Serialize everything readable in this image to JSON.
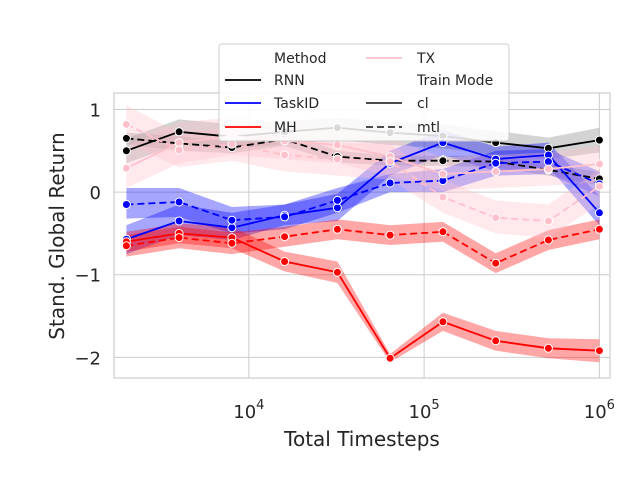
{
  "chart_data": {
    "type": "line",
    "title": "",
    "xlabel": "Total Timesteps",
    "ylabel": "Stand. Global Return",
    "xscale": "log",
    "xlim": [
      1700,
      1150000
    ],
    "ylim": [
      -2.25,
      1.2
    ],
    "xticks": [
      {
        "value": 10000,
        "base": "10",
        "exp": "4"
      },
      {
        "value": 100000,
        "base": "10",
        "exp": "5"
      },
      {
        "value": 1000000,
        "base": "10",
        "exp": "6"
      }
    ],
    "yticks": [
      1,
      0,
      -1,
      -2
    ],
    "ytick_labels": [
      "1",
      "0",
      "−1",
      "−2"
    ],
    "grid": true,
    "legend": {
      "placement": "top-center",
      "method_title": "Method",
      "mode_title": "Train Mode",
      "entries": [
        {
          "label": "RNN",
          "color": "#000000",
          "dash": "solid"
        },
        {
          "label": "TaskID",
          "color": "#0000ff",
          "dash": "solid"
        },
        {
          "label": "MH",
          "color": "#ff0000",
          "dash": "solid"
        },
        {
          "label": "TX",
          "color": "#ffc0cb",
          "dash": "solid"
        },
        {
          "label": "cl",
          "color": "#333333",
          "dash": "solid"
        },
        {
          "label": "mtl",
          "color": "#333333",
          "dash": "dashed"
        }
      ]
    },
    "x": [
      2000,
      4000,
      8000,
      16000,
      32000,
      64000,
      128000,
      256000,
      512000,
      1000000
    ],
    "series": [
      {
        "name": "RNN",
        "mode": "cl",
        "color": "#000000",
        "fill": "#808080",
        "values": [
          0.5,
          0.73,
          0.67,
          0.73,
          0.78,
          0.72,
          0.68,
          0.6,
          0.53,
          0.63
        ],
        "lower": [
          0.35,
          0.58,
          0.52,
          0.58,
          0.63,
          0.57,
          0.53,
          0.45,
          0.4,
          0.48
        ],
        "upper": [
          0.65,
          0.88,
          0.82,
          0.86,
          0.9,
          0.85,
          0.82,
          0.74,
          0.66,
          0.78
        ]
      },
      {
        "name": "RNN",
        "mode": "mtl",
        "color": "#000000",
        "fill": "#808080",
        "values": [
          0.65,
          0.59,
          0.54,
          0.64,
          0.43,
          0.38,
          0.38,
          0.37,
          0.27,
          0.16
        ],
        "lower": [
          0.58,
          0.5,
          0.47,
          0.56,
          0.36,
          0.32,
          0.32,
          0.3,
          0.2,
          0.08
        ],
        "upper": [
          0.72,
          0.68,
          0.61,
          0.72,
          0.5,
          0.44,
          0.44,
          0.44,
          0.34,
          0.24
        ]
      },
      {
        "name": "TaskID",
        "mode": "cl",
        "color": "#0000ff",
        "fill": "#0000ff",
        "values": [
          -0.57,
          -0.35,
          -0.43,
          -0.28,
          -0.19,
          0.35,
          0.6,
          0.4,
          0.45,
          -0.25
        ],
        "lower": [
          -0.75,
          -0.52,
          -0.58,
          -0.4,
          -0.35,
          0.2,
          0.45,
          0.25,
          0.3,
          -0.4
        ],
        "upper": [
          -0.4,
          -0.15,
          -0.25,
          -0.15,
          -0.02,
          0.5,
          0.75,
          0.55,
          0.6,
          -0.05
        ]
      },
      {
        "name": "TaskID",
        "mode": "mtl",
        "color": "#0000ff",
        "fill": "#0000ff",
        "values": [
          -0.15,
          -0.12,
          -0.34,
          -0.3,
          -0.1,
          0.11,
          0.14,
          0.35,
          0.37,
          0.1
        ],
        "lower": [
          -0.32,
          -0.3,
          -0.5,
          -0.45,
          -0.25,
          0.0,
          0.0,
          0.2,
          0.22,
          -0.05
        ],
        "upper": [
          0.05,
          0.05,
          -0.18,
          -0.15,
          0.05,
          0.22,
          0.28,
          0.5,
          0.52,
          0.25
        ]
      },
      {
        "name": "MH",
        "mode": "cl",
        "color": "#ff0000",
        "fill": "#ff0000",
        "values": [
          -0.6,
          -0.5,
          -0.55,
          -0.84,
          -0.97,
          -2.01,
          -1.57,
          -1.8,
          -1.89,
          -1.92
        ],
        "lower": [
          -0.72,
          -0.62,
          -0.68,
          -0.96,
          -1.1,
          -2.06,
          -1.68,
          -1.92,
          -2.01,
          -2.06
        ],
        "upper": [
          -0.48,
          -0.38,
          -0.42,
          -0.72,
          -0.84,
          -1.96,
          -1.46,
          -1.68,
          -1.77,
          -1.78
        ]
      },
      {
        "name": "MH",
        "mode": "mtl",
        "color": "#ff0000",
        "fill": "#ff0000",
        "values": [
          -0.65,
          -0.55,
          -0.62,
          -0.54,
          -0.45,
          -0.52,
          -0.48,
          -0.86,
          -0.58,
          -0.45
        ],
        "lower": [
          -0.78,
          -0.68,
          -0.75,
          -0.66,
          -0.57,
          -0.64,
          -0.6,
          -0.98,
          -0.7,
          -0.57
        ],
        "upper": [
          -0.52,
          -0.42,
          -0.49,
          -0.42,
          -0.33,
          -0.4,
          -0.36,
          -0.74,
          -0.46,
          -0.33
        ]
      },
      {
        "name": "TX",
        "mode": "cl",
        "color": "#ffc0cb",
        "fill": "#ffc0cb",
        "values": [
          0.29,
          0.6,
          0.68,
          0.62,
          0.57,
          0.43,
          0.22,
          0.25,
          0.28,
          0.34
        ],
        "lower": [
          0.05,
          0.35,
          0.45,
          0.4,
          0.35,
          0.2,
          0.02,
          0.05,
          0.08,
          0.12
        ],
        "upper": [
          0.55,
          0.85,
          0.9,
          0.85,
          0.8,
          0.65,
          0.42,
          0.45,
          0.48,
          0.56
        ]
      },
      {
        "name": "TX",
        "mode": "mtl",
        "color": "#ffc0cb",
        "fill": "#ffc0cb",
        "values": [
          0.82,
          0.51,
          0.58,
          0.45,
          0.4,
          0.37,
          -0.06,
          -0.31,
          -0.35,
          0.07
        ],
        "lower": [
          0.6,
          0.3,
          0.38,
          0.25,
          0.2,
          0.15,
          -0.25,
          -0.5,
          -0.55,
          -0.15
        ],
        "upper": [
          1.05,
          0.72,
          0.78,
          0.65,
          0.6,
          0.58,
          0.15,
          -0.1,
          -0.15,
          0.28
        ]
      }
    ]
  }
}
